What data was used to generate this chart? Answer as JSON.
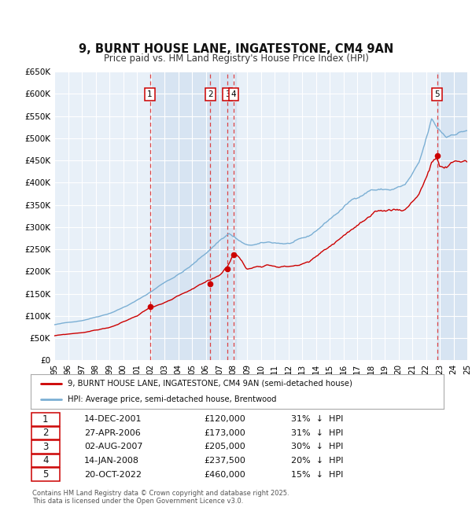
{
  "title": "9, BURNT HOUSE LANE, INGATESTONE, CM4 9AN",
  "subtitle": "Price paid vs. HM Land Registry's House Price Index (HPI)",
  "ylim": [
    0,
    650000
  ],
  "yticks": [
    0,
    50000,
    100000,
    150000,
    200000,
    250000,
    300000,
    350000,
    400000,
    450000,
    500000,
    550000,
    600000,
    650000
  ],
  "ytick_labels": [
    "£0",
    "£50K",
    "£100K",
    "£150K",
    "£200K",
    "£250K",
    "£300K",
    "£350K",
    "£400K",
    "£450K",
    "£500K",
    "£550K",
    "£600K",
    "£650K"
  ],
  "year_start": 1995,
  "year_end": 2025,
  "transactions": [
    {
      "num": 1,
      "date": "14-DEC-2001",
      "year": 2001.95,
      "price": 120000,
      "pct": "31%"
    },
    {
      "num": 2,
      "date": "27-APR-2006",
      "year": 2006.33,
      "price": 173000,
      "pct": "31%"
    },
    {
      "num": 3,
      "date": "02-AUG-2007",
      "year": 2007.58,
      "price": 205000,
      "pct": "30%"
    },
    {
      "num": 4,
      "date": "14-JAN-2008",
      "year": 2008.04,
      "price": 237500,
      "pct": "20%"
    },
    {
      "num": 5,
      "date": "20-OCT-2022",
      "year": 2022.8,
      "price": 460000,
      "pct": "15%"
    }
  ],
  "legend_entries": [
    "9, BURNT HOUSE LANE, INGATESTONE, CM4 9AN (semi-detached house)",
    "HPI: Average price, semi-detached house, Brentwood"
  ],
  "footer": "Contains HM Land Registry data © Crown copyright and database right 2025.\nThis data is licensed under the Open Government Licence v3.0.",
  "line_color_red": "#cc0000",
  "line_color_blue": "#7bafd4",
  "bg_color": "#e8f0f8",
  "grid_color": "#ffffff",
  "shaded_color": "#d0dff0"
}
